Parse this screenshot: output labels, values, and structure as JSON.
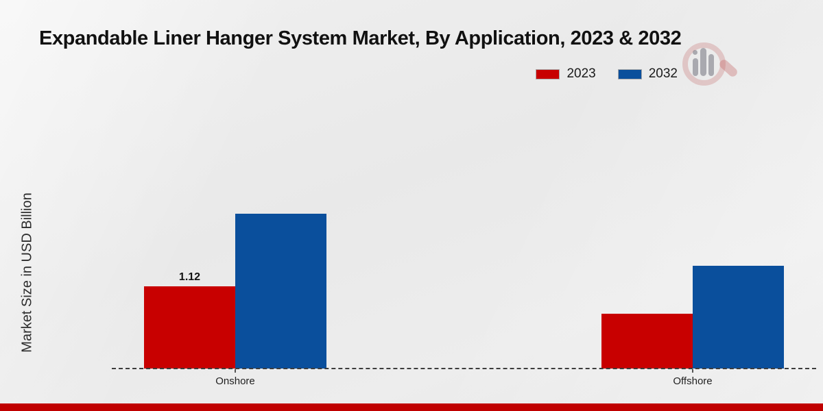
{
  "title": "Expandable Liner Hanger System Market, By Application, 2023 & 2032",
  "chart_data": {
    "type": "bar",
    "title": "Expandable Liner Hanger System Market, By Application, 2023 & 2032",
    "xlabel": "",
    "ylabel": "Market Size in USD Billion",
    "categories": [
      "Onshore",
      "Offshore"
    ],
    "series": [
      {
        "name": "2023",
        "color": "#c80000",
        "values": [
          1.12,
          0.75
        ]
      },
      {
        "name": "2032",
        "color": "#0a4f9c",
        "values": [
          2.11,
          1.4
        ]
      }
    ],
    "shown_value_labels": [
      {
        "category": "Onshore",
        "series": "2023",
        "text": "1.12"
      }
    ],
    "ylim": [
      0,
      2.5
    ],
    "grid": false,
    "baseline_style": "dashed",
    "legend_position": "top-right"
  },
  "branding": {
    "watermark_icon": "magnifier-chart-logo",
    "accent_color": "#c00000"
  }
}
